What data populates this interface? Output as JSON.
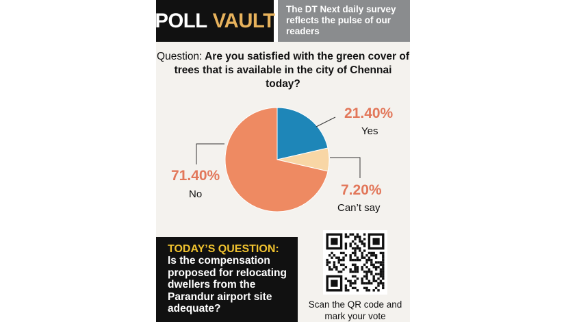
{
  "header": {
    "brand_word1": "POLL",
    "brand_word2": "VAULT",
    "tagline": "The DT Next daily survey reflects the pulse of our readers"
  },
  "question": {
    "label": "Question:",
    "text": "Are you satisfied with the green cover of trees that is available in the city of Chennai today?"
  },
  "chart_data": {
    "type": "pie",
    "slices": [
      {
        "label": "Yes",
        "value": 21.4,
        "display": "21.40%",
        "color": "#1e86b8"
      },
      {
        "label": "Can’t say",
        "value": 7.2,
        "display": "7.20%",
        "color": "#f8d6a5"
      },
      {
        "label": "No",
        "value": 71.4,
        "display": "71.40%",
        "color": "#ee8a62"
      }
    ]
  },
  "todays_question": {
    "heading": "TODAY’S QUESTION:",
    "text": "Is the compensation proposed for relocating dwellers from the Parandur airport site adequate?"
  },
  "qr": {
    "caption": "Scan the QR code and mark your vote"
  },
  "colors": {
    "header_black": "#111111",
    "vault_gold": "#e7b25c",
    "tagline_grey": "#8a8c8e",
    "percent_orange": "#e2775a",
    "today_heading_yellow": "#f1c32f",
    "card_background": "#f4f2ee"
  }
}
